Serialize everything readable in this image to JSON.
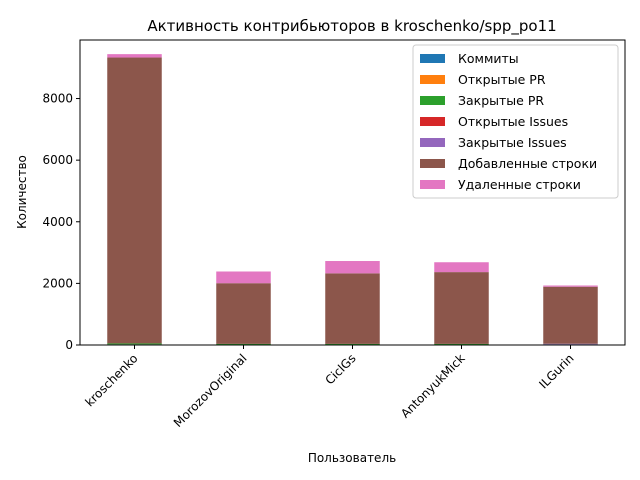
{
  "chart_data": {
    "type": "bar",
    "stacked": true,
    "title": "Активность контрибьюторов в kroschenko/spp_po11",
    "xlabel": "Пользователь",
    "ylabel": "Количество",
    "categories": [
      "kroschenko",
      "MorozovOriginal",
      "CiclGs",
      "AntonyukMick",
      "ILGurin"
    ],
    "ylim": [
      0,
      9900
    ],
    "yticks": [
      0,
      2000,
      4000,
      6000,
      8000
    ],
    "legend_position": "top-right",
    "grid": false,
    "series": [
      {
        "name": "Коммиты",
        "color": "#1f77b4",
        "values": [
          20,
          10,
          10,
          10,
          15
        ]
      },
      {
        "name": "Открытые PR",
        "color": "#ff7f0e",
        "values": [
          1,
          1,
          1,
          1,
          1
        ]
      },
      {
        "name": "Закрытые PR",
        "color": "#2ca02c",
        "values": [
          30,
          25,
          25,
          25,
          5
        ]
      },
      {
        "name": "Открытые Issues",
        "color": "#d62728",
        "values": [
          0,
          0,
          0,
          0,
          0
        ]
      },
      {
        "name": "Закрытые Issues",
        "color": "#9467bd",
        "values": [
          0,
          0,
          0,
          0,
          20
        ]
      },
      {
        "name": "Добавленные строки",
        "color": "#8c564b",
        "values": [
          9280,
          1970,
          2290,
          2330,
          1850
        ]
      },
      {
        "name": "Удаленные строки",
        "color": "#e377c2",
        "values": [
          110,
          380,
          400,
          320,
          40
        ]
      }
    ]
  }
}
